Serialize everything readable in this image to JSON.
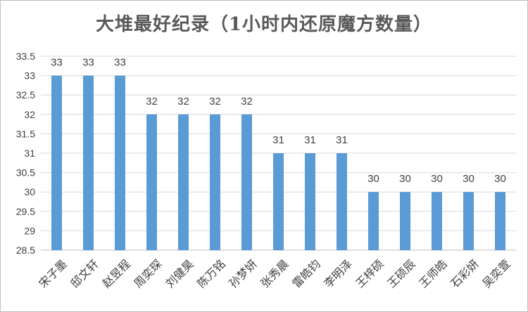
{
  "chart_data": {
    "type": "bar",
    "title": "大堆最好纪录（1小时内还原魔方数量）",
    "categories": [
      "宋子墨",
      "邸文轩",
      "赵昱程",
      "周奕琛",
      "刘健昊",
      "陈万铭",
      "孙梦妍",
      "张秀晨",
      "雷皓钧",
      "李明泽",
      "王梓硕",
      "王硕辰",
      "王师皓",
      "石彩妍",
      "吴奕萱"
    ],
    "values": [
      33,
      33,
      33,
      32,
      32,
      32,
      32,
      31,
      31,
      31,
      30,
      30,
      30,
      30,
      30
    ],
    "data_labels": [
      "33",
      "33",
      "33",
      "32",
      "32",
      "32",
      "32",
      "31",
      "31",
      "31",
      "30",
      "30",
      "30",
      "30",
      "30"
    ],
    "ylim": [
      28.5,
      33.5
    ],
    "yticks": [
      "28.5",
      "29",
      "29.5",
      "30",
      "30.5",
      "31",
      "31.5",
      "32",
      "32.5",
      "33",
      "33.5"
    ],
    "xlabel": "",
    "ylabel": "",
    "grid": true,
    "legend": "none",
    "colors": {
      "bar": "#5b9bd5",
      "grid": "#d9d9d9",
      "axis": "#bfbfbf",
      "text": "#404040"
    }
  }
}
